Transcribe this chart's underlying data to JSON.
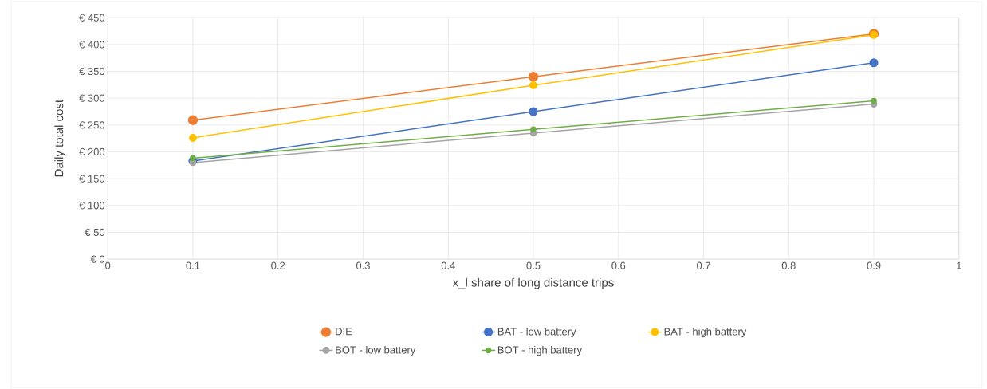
{
  "chart_data": {
    "type": "line",
    "xlabel": "x_l share of long distance trips",
    "ylabel": "Daily total cost",
    "x": [
      0.1,
      0.5,
      0.9
    ],
    "series": [
      {
        "name": "DIE",
        "color": "#ed7d31",
        "values": [
          259,
          340,
          420
        ]
      },
      {
        "name": "BAT - low battery",
        "color": "#4472c4",
        "values": [
          183,
          275,
          366
        ]
      },
      {
        "name": "BAT  - high battery",
        "color": "#ffc000",
        "values": [
          226,
          324,
          418
        ]
      },
      {
        "name": "BOT  - low battery",
        "color": "#a5a5a5",
        "values": [
          180,
          235,
          289
        ]
      },
      {
        "name": "BOT - high battery",
        "color": "#70ad47",
        "values": [
          188,
          242,
          295
        ]
      }
    ],
    "xlim": [
      0,
      1
    ],
    "xticks": [
      0,
      0.1,
      0.2,
      0.3,
      0.4,
      0.5,
      0.6,
      0.7,
      0.8,
      0.9,
      1
    ],
    "ylim": [
      0,
      450
    ],
    "yticks": [
      {
        "value": 0,
        "label": "€ 0"
      },
      {
        "value": 50,
        "label": "€ 50"
      },
      {
        "value": 100,
        "label": "€ 100"
      },
      {
        "value": 150,
        "label": "€ 150"
      },
      {
        "value": 200,
        "label": "€ 200"
      },
      {
        "value": 250,
        "label": "€ 250"
      },
      {
        "value": 300,
        "label": "€ 300"
      },
      {
        "value": 350,
        "label": "€ 350"
      },
      {
        "value": 400,
        "label": "€ 400"
      },
      {
        "value": 450,
        "label": "€ 450"
      }
    ],
    "grid": true,
    "legend": "bottom",
    "marker": "circle",
    "line_style": "solid"
  }
}
